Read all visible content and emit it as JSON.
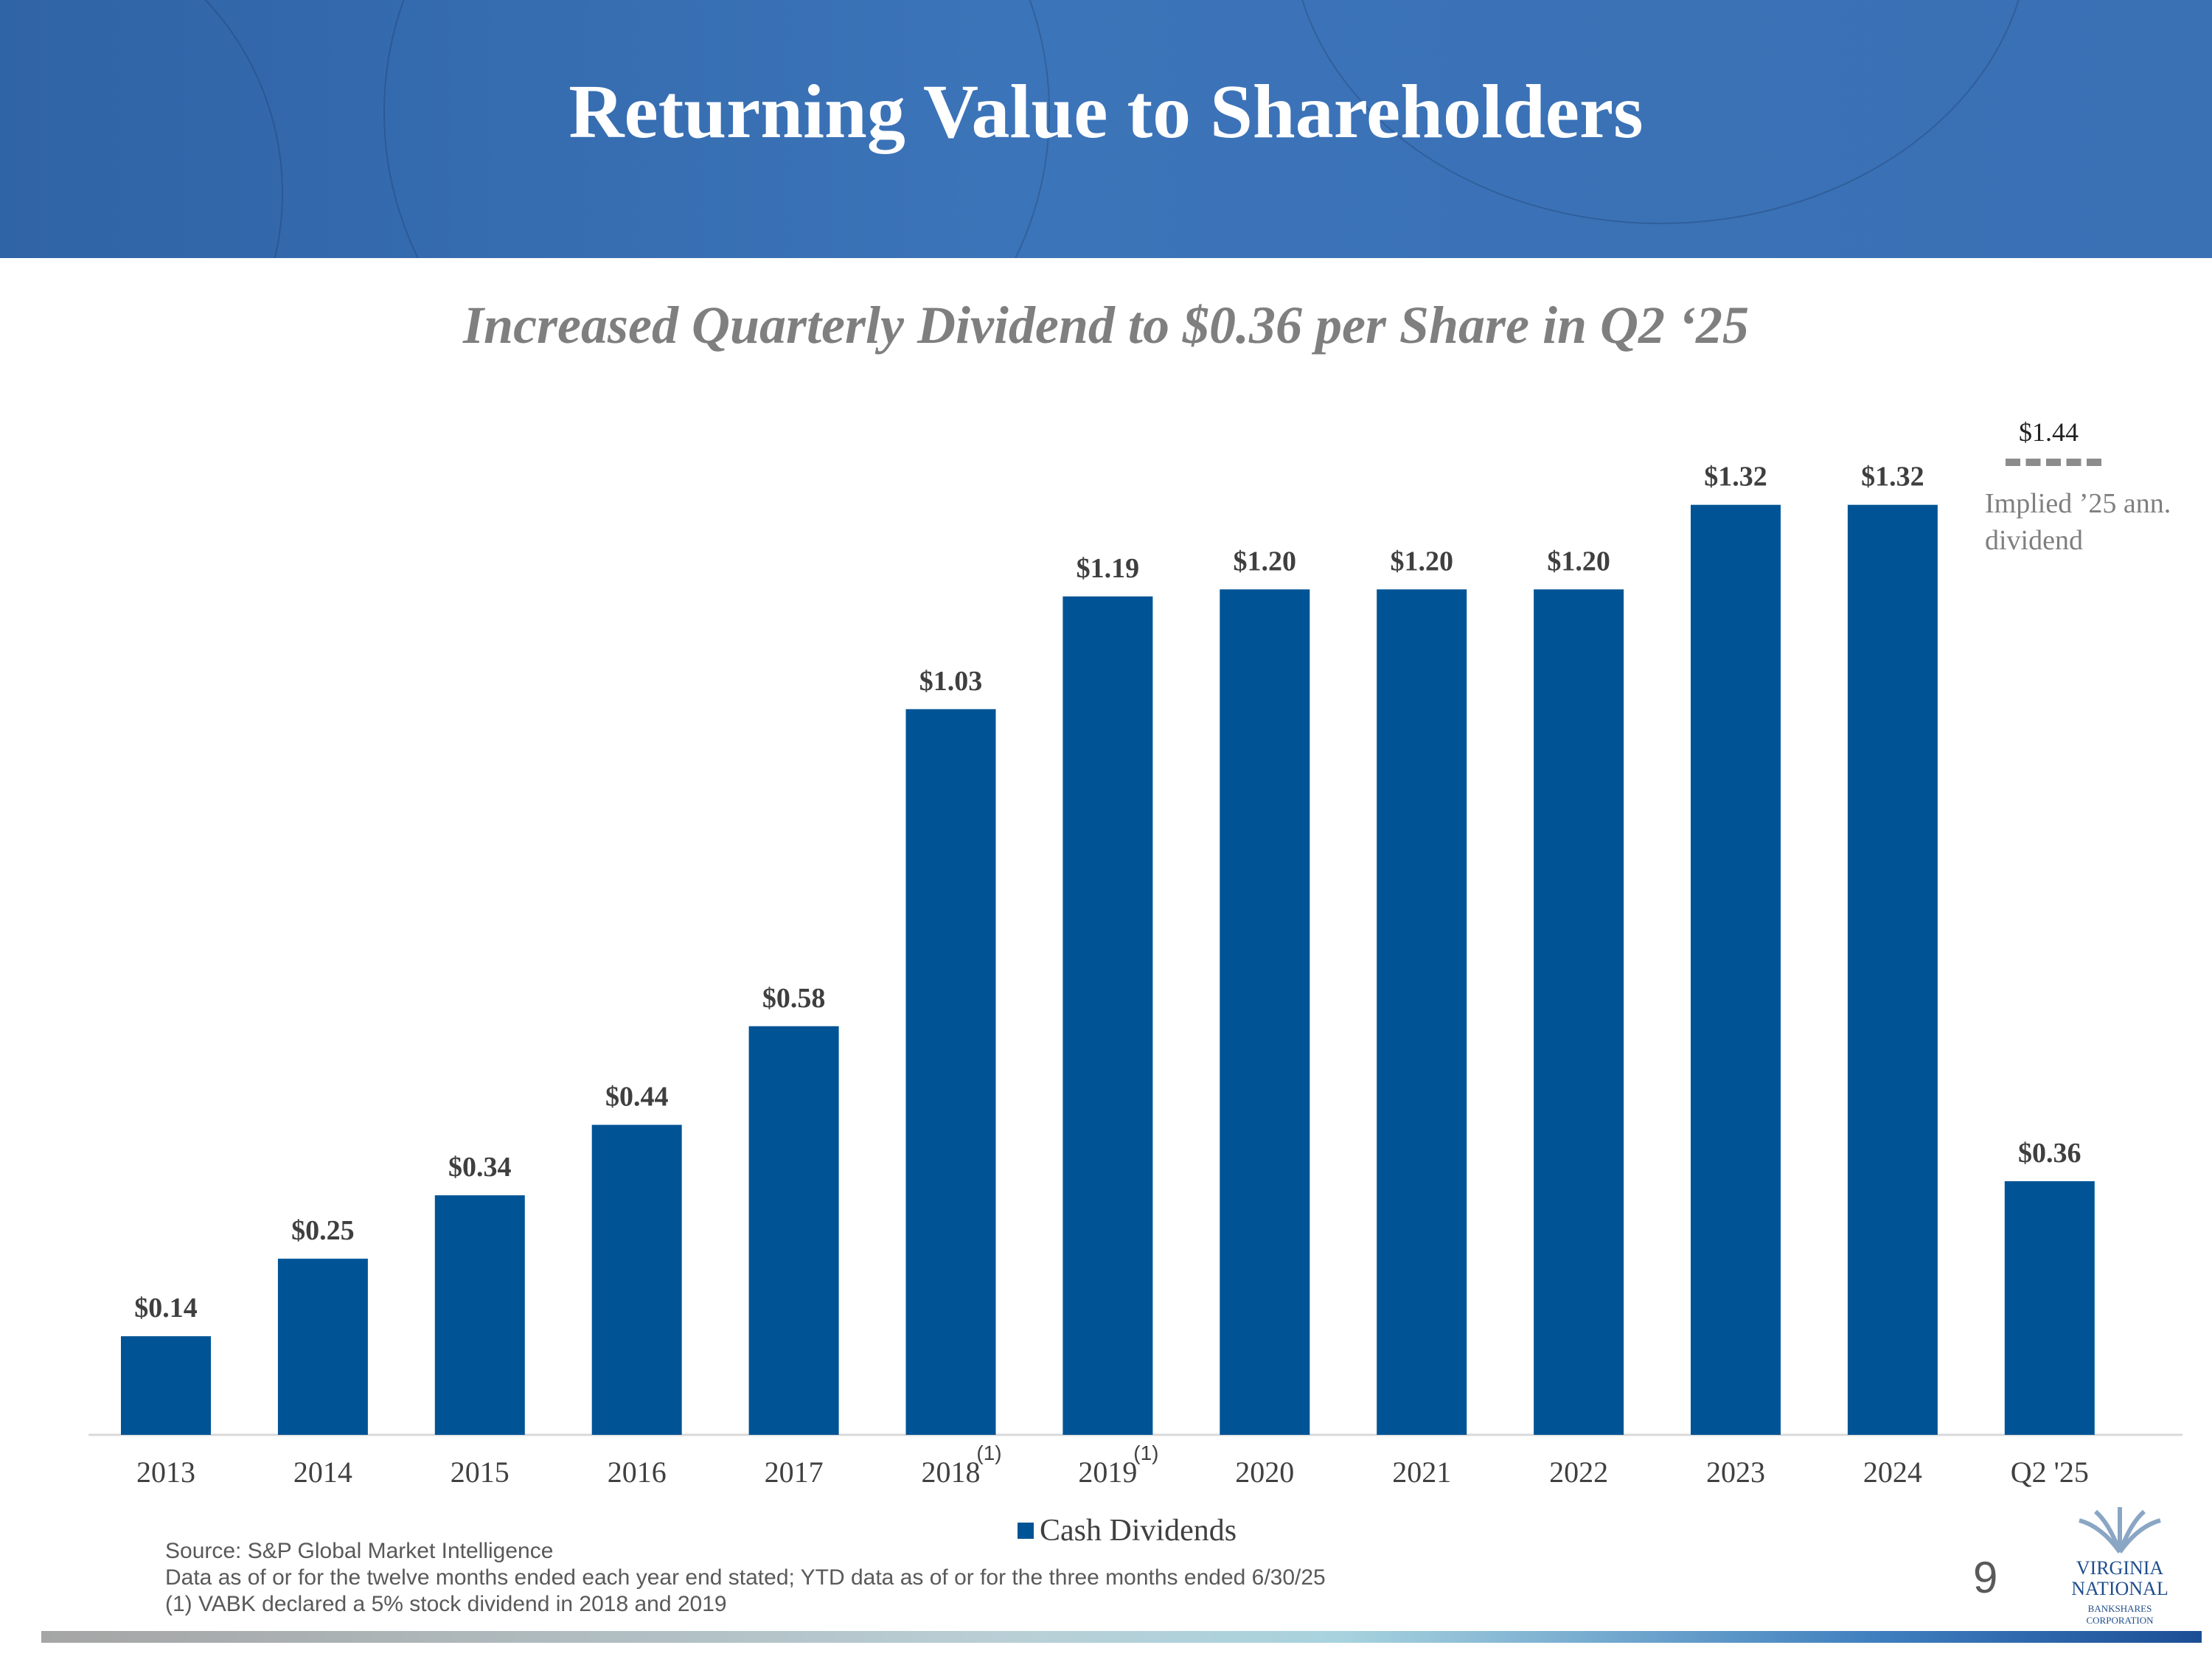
{
  "header": {
    "title": "Returning Value to Shareholders"
  },
  "subtitle": "Increased Quarterly Dividend to $0.36 per Share in Q2 ‘25",
  "colors": {
    "bar": "#005496",
    "header": "#3a70b4",
    "dash": "#8c8c8c"
  },
  "chart_data": {
    "type": "bar",
    "categories": [
      "2013",
      "2014",
      "2015",
      "2016",
      "2017",
      "2018",
      "2019",
      "2020",
      "2021",
      "2022",
      "2023",
      "2024",
      "Q2 '25"
    ],
    "series": [
      {
        "name": "Cash Dividends",
        "values": [
          0.14,
          0.25,
          0.34,
          0.44,
          0.58,
          1.03,
          1.19,
          1.2,
          1.2,
          1.2,
          1.32,
          1.32,
          0.36
        ]
      }
    ],
    "data_labels": [
      "$0.14",
      "$0.25",
      "$0.34",
      "$0.44",
      "$0.58",
      "$1.03",
      "$1.19",
      "$1.20",
      "$1.20",
      "$1.20",
      "$1.32",
      "$1.32",
      "$0.36"
    ],
    "category_footnotes": {
      "2018": "(1)",
      "2019": "(1)"
    },
    "ylim": [
      0,
      1.44
    ],
    "legend": [
      "Cash Dividends"
    ],
    "legend_position": "bottom",
    "annotation": {
      "value_label": "$1.44",
      "value": 1.44,
      "label": "Implied ’25 ann. dividend"
    }
  },
  "footnotes": {
    "source": "Source: S&P Global Market Intelligence",
    "data_note": "Data as of or for the twelve months ended each year end stated; YTD data as of or for the three months ended 6/30/25",
    "note1": "(1)    VABK declared a 5% stock dividend in 2018 and 2019"
  },
  "page_number": "9",
  "logo": {
    "line1": "VIRGINIA",
    "line2": "NATIONAL",
    "line3": "BANKSHARES",
    "line4": "CORPORATION"
  }
}
